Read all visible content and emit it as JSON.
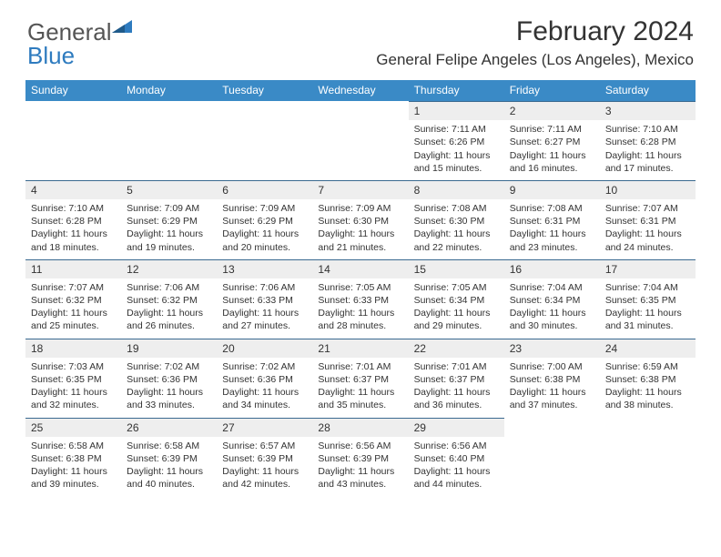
{
  "logo": {
    "text1": "General",
    "text2": "Blue"
  },
  "title": "February 2024",
  "location": "General Felipe Angeles (Los Angeles), Mexico",
  "colors": {
    "header_bg": "#3a8ac6",
    "header_text": "#ffffff",
    "daynum_bg": "#eeeeee",
    "daynum_border": "#3a6a90",
    "text": "#333333",
    "logo_gray": "#555555",
    "logo_blue": "#2e7bbf"
  },
  "dayheads": [
    "Sunday",
    "Monday",
    "Tuesday",
    "Wednesday",
    "Thursday",
    "Friday",
    "Saturday"
  ],
  "weeks": [
    [
      null,
      null,
      null,
      null,
      {
        "d": "1",
        "sr": "7:11 AM",
        "ss": "6:26 PM",
        "m": "15"
      },
      {
        "d": "2",
        "sr": "7:11 AM",
        "ss": "6:27 PM",
        "m": "16"
      },
      {
        "d": "3",
        "sr": "7:10 AM",
        "ss": "6:28 PM",
        "m": "17"
      }
    ],
    [
      {
        "d": "4",
        "sr": "7:10 AM",
        "ss": "6:28 PM",
        "m": "18"
      },
      {
        "d": "5",
        "sr": "7:09 AM",
        "ss": "6:29 PM",
        "m": "19"
      },
      {
        "d": "6",
        "sr": "7:09 AM",
        "ss": "6:29 PM",
        "m": "20"
      },
      {
        "d": "7",
        "sr": "7:09 AM",
        "ss": "6:30 PM",
        "m": "21"
      },
      {
        "d": "8",
        "sr": "7:08 AM",
        "ss": "6:30 PM",
        "m": "22"
      },
      {
        "d": "9",
        "sr": "7:08 AM",
        "ss": "6:31 PM",
        "m": "23"
      },
      {
        "d": "10",
        "sr": "7:07 AM",
        "ss": "6:31 PM",
        "m": "24"
      }
    ],
    [
      {
        "d": "11",
        "sr": "7:07 AM",
        "ss": "6:32 PM",
        "m": "25"
      },
      {
        "d": "12",
        "sr": "7:06 AM",
        "ss": "6:32 PM",
        "m": "26"
      },
      {
        "d": "13",
        "sr": "7:06 AM",
        "ss": "6:33 PM",
        "m": "27"
      },
      {
        "d": "14",
        "sr": "7:05 AM",
        "ss": "6:33 PM",
        "m": "28"
      },
      {
        "d": "15",
        "sr": "7:05 AM",
        "ss": "6:34 PM",
        "m": "29"
      },
      {
        "d": "16",
        "sr": "7:04 AM",
        "ss": "6:34 PM",
        "m": "30"
      },
      {
        "d": "17",
        "sr": "7:04 AM",
        "ss": "6:35 PM",
        "m": "31"
      }
    ],
    [
      {
        "d": "18",
        "sr": "7:03 AM",
        "ss": "6:35 PM",
        "m": "32"
      },
      {
        "d": "19",
        "sr": "7:02 AM",
        "ss": "6:36 PM",
        "m": "33"
      },
      {
        "d": "20",
        "sr": "7:02 AM",
        "ss": "6:36 PM",
        "m": "34"
      },
      {
        "d": "21",
        "sr": "7:01 AM",
        "ss": "6:37 PM",
        "m": "35"
      },
      {
        "d": "22",
        "sr": "7:01 AM",
        "ss": "6:37 PM",
        "m": "36"
      },
      {
        "d": "23",
        "sr": "7:00 AM",
        "ss": "6:38 PM",
        "m": "37"
      },
      {
        "d": "24",
        "sr": "6:59 AM",
        "ss": "6:38 PM",
        "m": "38"
      }
    ],
    [
      {
        "d": "25",
        "sr": "6:58 AM",
        "ss": "6:38 PM",
        "m": "39"
      },
      {
        "d": "26",
        "sr": "6:58 AM",
        "ss": "6:39 PM",
        "m": "40"
      },
      {
        "d": "27",
        "sr": "6:57 AM",
        "ss": "6:39 PM",
        "m": "42"
      },
      {
        "d": "28",
        "sr": "6:56 AM",
        "ss": "6:39 PM",
        "m": "43"
      },
      {
        "d": "29",
        "sr": "6:56 AM",
        "ss": "6:40 PM",
        "m": "44"
      },
      null,
      null
    ]
  ],
  "labels": {
    "sunrise": "Sunrise: ",
    "sunset": "Sunset: ",
    "daylight1": "Daylight: 11 hours",
    "daylight2a": "and ",
    "daylight2b": " minutes."
  }
}
